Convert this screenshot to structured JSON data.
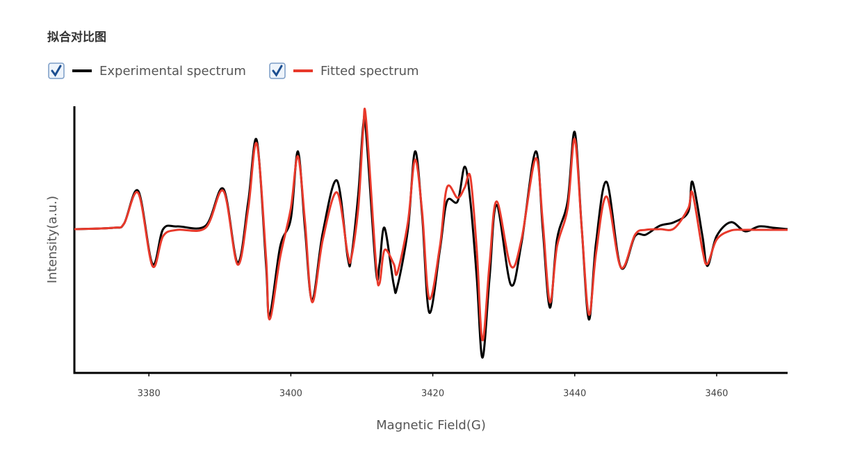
{
  "chart_data": {
    "type": "line",
    "title": "拟合对比图",
    "x_label": "Magnetic Field(G)",
    "y_label": "Intensity(a.u.)",
    "x": [
      3369.5,
      3375,
      3376.5,
      3378.5,
      3380.5,
      3382,
      3384,
      3388,
      3390.5,
      3392.5,
      3394,
      3395.2,
      3396.5,
      3397,
      3398.5,
      3400,
      3401,
      3402,
      3403,
      3404.5,
      3406.5,
      3408,
      3408.5,
      3409.5,
      3410.2,
      3410.6,
      3412,
      3412.5,
      3413.2,
      3414.5,
      3415,
      3416.5,
      3417.5,
      3418.5,
      3419.5,
      3421,
      3422,
      3423.5,
      3424.5,
      3425.3,
      3426.2,
      3427,
      3428,
      3429,
      3431,
      3432.5,
      3434.5,
      3435.5,
      3436.5,
      3437.5,
      3439,
      3440,
      3441,
      3442,
      3443,
      3444.5,
      3446.5,
      3448.5,
      3450,
      3452,
      3454,
      3456,
      3456.6,
      3458,
      3458.7,
      3460,
      3462,
      3464,
      3466,
      3468,
      3470
    ],
    "series": [
      {
        "name": "Experimental spectrum",
        "color": "#000000",
        "values": [
          0,
          0.02,
          0.08,
          0.55,
          -0.5,
          0,
          0.04,
          0.05,
          0.58,
          -0.48,
          0.4,
          1.28,
          -0.5,
          -1.25,
          -0.25,
          0.15,
          1.12,
          0,
          -1.02,
          -0.05,
          0.7,
          -0.4,
          -0.42,
          0.5,
          1.5,
          1.4,
          -0.6,
          -0.5,
          0.02,
          -0.8,
          -0.83,
          0,
          1.12,
          0.2,
          -1.2,
          -0.3,
          0.4,
          0.4,
          0.9,
          0.4,
          -0.7,
          -1.85,
          -0.7,
          0.35,
          -0.8,
          -0.2,
          1.12,
          0,
          -1.13,
          -0.15,
          0.4,
          1.4,
          0,
          -1.3,
          -0.2,
          0.68,
          -0.55,
          -0.1,
          -0.08,
          0.05,
          0.1,
          0.25,
          0.68,
          -0.1,
          -0.53,
          -0.1,
          0.1,
          -0.03,
          0.04,
          0.02,
          0
        ]
      },
      {
        "name": "Fitted spectrum",
        "color": "#e8392b",
        "values": [
          0,
          0.02,
          0.08,
          0.52,
          -0.53,
          -0.1,
          -0.01,
          0.02,
          0.55,
          -0.51,
          0.3,
          1.23,
          -0.4,
          -1.3,
          -0.4,
          0.3,
          1.05,
          0.1,
          -1.05,
          -0.15,
          0.53,
          -0.35,
          -0.42,
          0.3,
          1.44,
          1.58,
          -0.5,
          -0.78,
          -0.3,
          -0.5,
          -0.63,
          0.1,
          1.0,
          0.25,
          -1.0,
          -0.25,
          0.6,
          0.45,
          0.6,
          0.75,
          -0.3,
          -1.6,
          -0.5,
          0.4,
          -0.53,
          -0.15,
          1.02,
          0.1,
          -1.05,
          -0.25,
          0.3,
          1.3,
          0,
          -1.23,
          -0.35,
          0.47,
          -0.55,
          -0.08,
          -0.01,
          0,
          0.01,
          0.3,
          0.52,
          -0.3,
          -0.5,
          -0.15,
          -0.02,
          -0.01,
          -0.01,
          -0.01,
          -0.01
        ]
      }
    ],
    "xlim": [
      3369.5,
      3470
    ],
    "xticks": [
      3380,
      3400,
      3420,
      3440,
      3460
    ],
    "ylim": [
      -2.07,
      1.77
    ],
    "grid": false
  }
}
